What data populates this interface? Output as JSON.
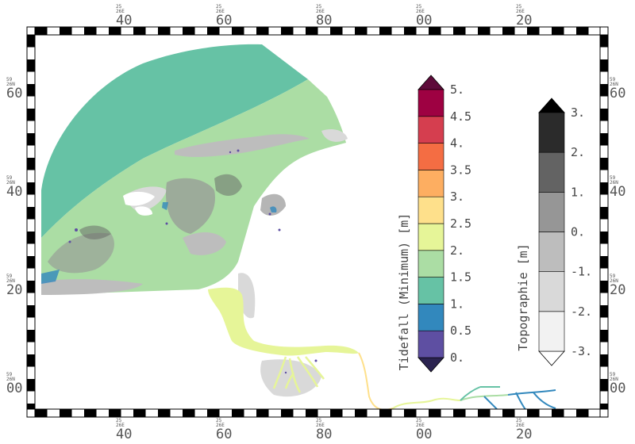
{
  "top_ticks": [
    {
      "sub": "25",
      "sub2": "26E",
      "label": "40"
    },
    {
      "sub": "25",
      "sub2": "26E",
      "label": "60"
    },
    {
      "sub": "25",
      "sub2": "26E",
      "label": "80"
    },
    {
      "sub": "25",
      "sub2": "26E",
      "label": "00"
    },
    {
      "sub": "25",
      "sub2": "26E",
      "label": "20"
    }
  ],
  "bottom_ticks": [
    {
      "sub": "25",
      "sub2": "26E",
      "label": "40"
    },
    {
      "sub": "25",
      "sub2": "26E",
      "label": "60"
    },
    {
      "sub": "25",
      "sub2": "26E",
      "label": "80"
    },
    {
      "sub": "25",
      "sub2": "26E",
      "label": "00"
    },
    {
      "sub": "25",
      "sub2": "26E",
      "label": "20"
    }
  ],
  "left_ticks": [
    {
      "sub": "59",
      "sub2": "26N",
      "label": "60"
    },
    {
      "sub": "59",
      "sub2": "26N",
      "label": "40"
    },
    {
      "sub": "59",
      "sub2": "26N",
      "label": "20"
    },
    {
      "sub": "59",
      "sub2": "26N",
      "label": "00"
    }
  ],
  "right_ticks": [
    {
      "sub": "59",
      "sub2": "26N",
      "label": "60"
    },
    {
      "sub": "59",
      "sub2": "26N",
      "label": "40"
    },
    {
      "sub": "59",
      "sub2": "26N",
      "label": "20"
    },
    {
      "sub": "59",
      "sub2": "26N",
      "label": "00"
    }
  ],
  "tide_colorbar": {
    "title": "Tidefall (Minimum) [m]",
    "colors": [
      "#5e4fa2",
      "#3288bd",
      "#66c2a5",
      "#abdda4",
      "#e6f598",
      "#fee08b",
      "#fdae61",
      "#f46d43",
      "#d53e4f",
      "#9e0142"
    ],
    "over_color": "#5e0b3a",
    "under_color": "#2b2350",
    "labels": [
      "0.",
      "0.5",
      "1.",
      "1.5",
      "2.",
      "2.5",
      "3.",
      "3.5",
      "4.",
      "4.5",
      "5."
    ]
  },
  "topo_colorbar": {
    "title": "Topographie [m]",
    "colors": [
      "#f2f2f2",
      "#d9d9d9",
      "#bdbdbd",
      "#969696",
      "#636363",
      "#2b2b2b"
    ],
    "over_color": "#000000",
    "under_color": "#ffffff",
    "labels": [
      "-3.",
      "-2.",
      "-1.",
      "0.",
      "1.",
      "2.",
      "3."
    ]
  }
}
